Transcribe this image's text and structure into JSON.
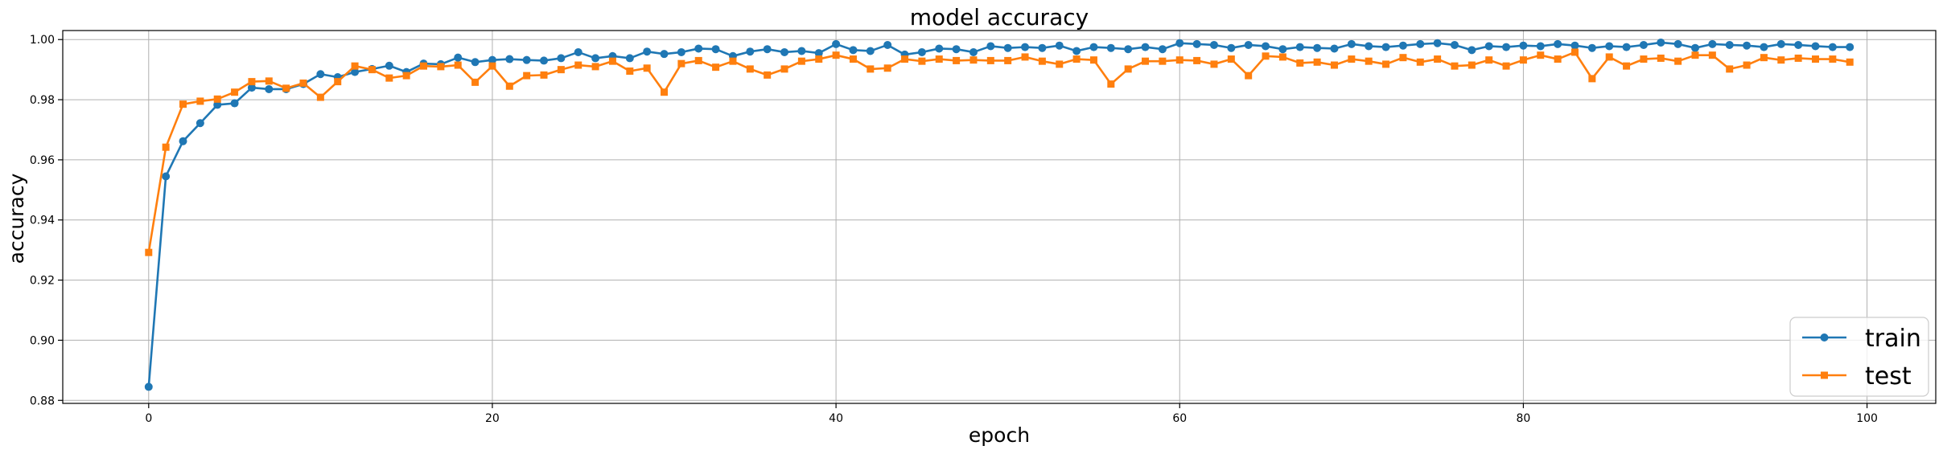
{
  "chart_data": {
    "type": "line",
    "title": "model accuracy",
    "xlabel": "epoch",
    "ylabel": "accuracy",
    "xlim": [
      -5,
      104
    ],
    "ylim": [
      0.879,
      1.003
    ],
    "xticks": [
      0,
      20,
      40,
      60,
      80,
      100
    ],
    "xtick_labels": [
      "0",
      "20",
      "40",
      "60",
      "80",
      "100"
    ],
    "yticks": [
      0.88,
      0.9,
      0.92,
      0.94,
      0.96,
      0.98,
      1.0
    ],
    "ytick_labels": [
      "0.88",
      "0.90",
      "0.92",
      "0.94",
      "0.96",
      "0.98",
      "1.00"
    ],
    "grid": true,
    "legend_position": "bottom-right",
    "x": [
      0,
      1,
      2,
      3,
      4,
      5,
      6,
      7,
      8,
      9,
      10,
      11,
      12,
      13,
      14,
      15,
      16,
      17,
      18,
      19,
      20,
      21,
      22,
      23,
      24,
      25,
      26,
      27,
      28,
      29,
      30,
      31,
      32,
      33,
      34,
      35,
      36,
      37,
      38,
      39,
      40,
      41,
      42,
      43,
      44,
      45,
      46,
      47,
      48,
      49,
      50,
      51,
      52,
      53,
      54,
      55,
      56,
      57,
      58,
      59,
      60,
      61,
      62,
      63,
      64,
      65,
      66,
      67,
      68,
      69,
      70,
      71,
      72,
      73,
      74,
      75,
      76,
      77,
      78,
      79,
      80,
      81,
      82,
      83,
      84,
      85,
      86,
      87,
      88,
      89,
      90,
      91,
      92,
      93,
      94,
      95,
      96,
      97,
      98,
      99
    ],
    "series": [
      {
        "name": "train",
        "color": "#1f77b4",
        "marker": "circle",
        "values": [
          0.8845,
          0.9545,
          0.9662,
          0.9722,
          0.9783,
          0.9788,
          0.984,
          0.9835,
          0.9835,
          0.9852,
          0.9885,
          0.9875,
          0.9892,
          0.9902,
          0.9913,
          0.9892,
          0.992,
          0.9918,
          0.994,
          0.9925,
          0.9932,
          0.9935,
          0.9932,
          0.993,
          0.9938,
          0.9958,
          0.9938,
          0.9945,
          0.9938,
          0.996,
          0.9952,
          0.9958,
          0.997,
          0.9968,
          0.9945,
          0.996,
          0.9968,
          0.9958,
          0.9962,
          0.9955,
          0.9985,
          0.9965,
          0.9962,
          0.9982,
          0.995,
          0.9958,
          0.997,
          0.9968,
          0.9958,
          0.9978,
          0.9972,
          0.9975,
          0.9972,
          0.998,
          0.9962,
          0.9975,
          0.9972,
          0.9968,
          0.9975,
          0.9968,
          0.9988,
          0.9985,
          0.9982,
          0.9972,
          0.9982,
          0.9978,
          0.9968,
          0.9975,
          0.9972,
          0.997,
          0.9985,
          0.9978,
          0.9975,
          0.998,
          0.9985,
          0.9988,
          0.9982,
          0.9965,
          0.9978,
          0.9975,
          0.998,
          0.9978,
          0.9985,
          0.998,
          0.9972,
          0.9978,
          0.9975,
          0.9982,
          0.999,
          0.9985,
          0.9972,
          0.9985,
          0.9982,
          0.998,
          0.9975,
          0.9985,
          0.9982,
          0.9978,
          0.9975,
          0.9975
        ]
      },
      {
        "name": "test",
        "color": "#ff7f0e",
        "marker": "square",
        "values": [
          0.9292,
          0.9642,
          0.9785,
          0.9795,
          0.9802,
          0.9825,
          0.986,
          0.9862,
          0.9838,
          0.9855,
          0.9808,
          0.986,
          0.9912,
          0.99,
          0.9872,
          0.988,
          0.9912,
          0.991,
          0.9915,
          0.9858,
          0.9912,
          0.9845,
          0.988,
          0.9882,
          0.99,
          0.9915,
          0.991,
          0.9928,
          0.9895,
          0.9905,
          0.9825,
          0.992,
          0.993,
          0.9908,
          0.9928,
          0.9902,
          0.9882,
          0.9902,
          0.9928,
          0.9935,
          0.9948,
          0.9935,
          0.9902,
          0.9905,
          0.9935,
          0.9928,
          0.9935,
          0.993,
          0.9932,
          0.993,
          0.993,
          0.9942,
          0.9928,
          0.9918,
          0.9935,
          0.9932,
          0.9852,
          0.9902,
          0.9928,
          0.9928,
          0.9932,
          0.993,
          0.9918,
          0.9935,
          0.988,
          0.9945,
          0.9942,
          0.9922,
          0.9925,
          0.9915,
          0.9935,
          0.9928,
          0.9918,
          0.994,
          0.9925,
          0.9935,
          0.9912,
          0.9915,
          0.9932,
          0.9912,
          0.9932,
          0.9948,
          0.9935,
          0.9958,
          0.987,
          0.9942,
          0.9912,
          0.9935,
          0.9938,
          0.9928,
          0.9948,
          0.9948,
          0.9902,
          0.9915,
          0.994,
          0.9932,
          0.9938,
          0.9935,
          0.9935,
          0.9925
        ]
      }
    ]
  }
}
